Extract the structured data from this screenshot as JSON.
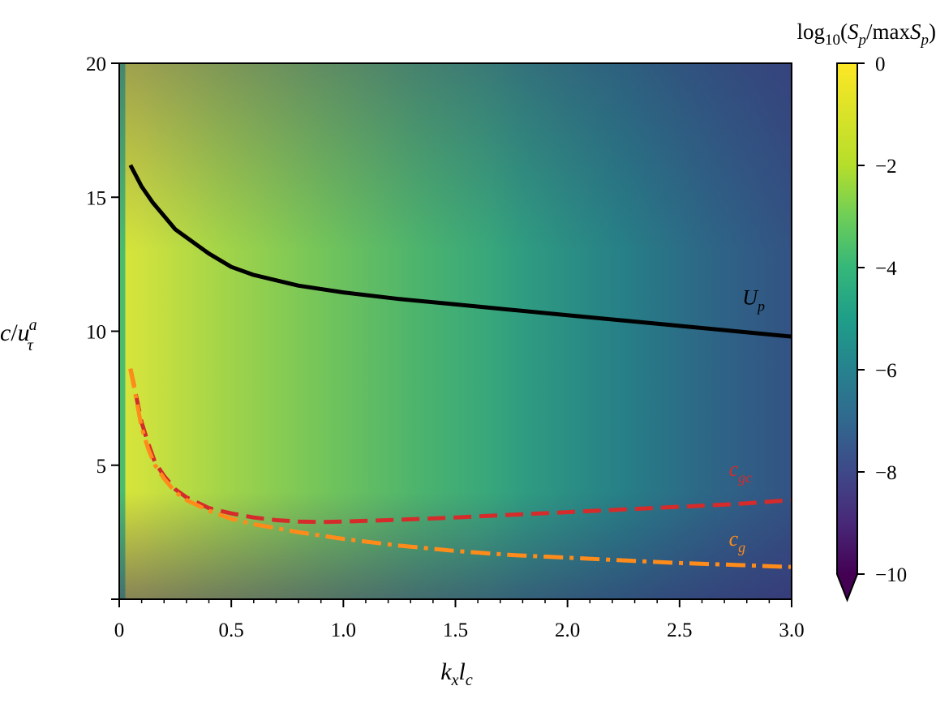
{
  "chart_data": {
    "type": "heatmap",
    "xlabel": "k_x l_c",
    "ylabel": "c/u_τ^a",
    "xlim": [
      0,
      3.0
    ],
    "ylim": [
      0,
      20
    ],
    "x_ticks": [
      0,
      0.5,
      1.0,
      1.5,
      2.0,
      2.5,
      3.0
    ],
    "x_tick_labels": [
      "0",
      "0.5",
      "1.0",
      "1.5",
      "2.0",
      "2.5",
      "3.0"
    ],
    "y_ticks": [
      5,
      10,
      15,
      20
    ],
    "y_tick_labels": [
      "5",
      "10",
      "15",
      "20"
    ],
    "colorbar": {
      "label": "log10(Sp/maxSp)",
      "range": [
        -10,
        0
      ],
      "ticks": [
        0,
        -2,
        -4,
        -6,
        -8,
        -10
      ],
      "tick_labels": [
        "0",
        "−2",
        "−4",
        "−6",
        "−8",
        "−10"
      ],
      "colormap": "viridis",
      "extend": "min"
    },
    "grid": false,
    "series": [
      {
        "name": "U_p",
        "label_sub": "p",
        "color": "#000000",
        "style": "solid",
        "x": [
          0.05,
          0.1,
          0.15,
          0.2,
          0.25,
          0.3,
          0.4,
          0.5,
          0.6,
          0.7,
          0.8,
          1.0,
          1.25,
          1.5,
          1.75,
          2.0,
          2.25,
          2.5,
          2.75,
          3.0
        ],
        "y": [
          16.2,
          15.4,
          14.8,
          14.3,
          13.8,
          13.5,
          12.9,
          12.4,
          12.1,
          11.9,
          11.7,
          11.45,
          11.2,
          11.0,
          10.8,
          10.6,
          10.4,
          10.2,
          10.0,
          9.8
        ]
      },
      {
        "name": "c_gc",
        "label_sub": "gc",
        "color": "#d62b2b",
        "style": "dashed",
        "x": [
          0.05,
          0.08,
          0.1,
          0.13,
          0.16,
          0.2,
          0.25,
          0.3,
          0.4,
          0.5,
          0.6,
          0.7,
          0.8,
          0.9,
          1.0,
          1.2,
          1.5,
          1.75,
          2.0,
          2.25,
          2.5,
          2.75,
          3.0
        ],
        "y": [
          8.6,
          7.4,
          6.6,
          5.8,
          5.1,
          4.6,
          4.1,
          3.8,
          3.4,
          3.2,
          3.05,
          2.95,
          2.9,
          2.88,
          2.9,
          2.95,
          3.05,
          3.15,
          3.25,
          3.35,
          3.45,
          3.55,
          3.7
        ]
      },
      {
        "name": "c_g",
        "label_sub": "g",
        "color": "#ff8c1a",
        "style": "dashdot",
        "x": [
          0.05,
          0.08,
          0.1,
          0.13,
          0.16,
          0.2,
          0.25,
          0.3,
          0.4,
          0.5,
          0.6,
          0.8,
          1.0,
          1.25,
          1.5,
          1.75,
          2.0,
          2.25,
          2.5,
          2.75,
          3.0
        ],
        "y": [
          8.6,
          7.3,
          6.4,
          5.6,
          5.0,
          4.5,
          4.0,
          3.7,
          3.3,
          3.0,
          2.8,
          2.5,
          2.25,
          2.0,
          1.8,
          1.65,
          1.55,
          1.45,
          1.35,
          1.28,
          1.2
        ]
      }
    ]
  }
}
